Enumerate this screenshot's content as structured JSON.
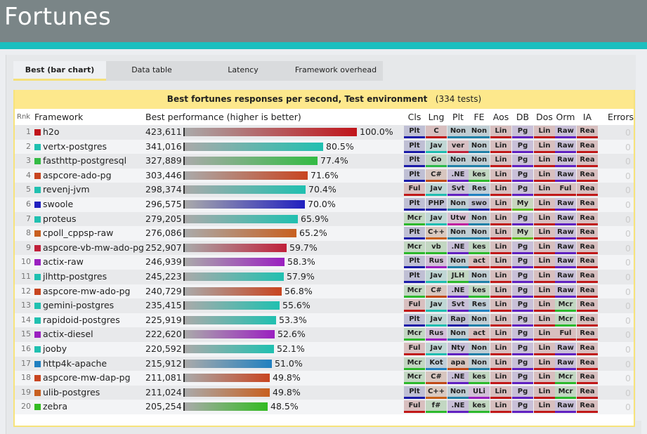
{
  "header": {
    "title": "Fortunes"
  },
  "tabs": [
    "Best (bar chart)",
    "Data table",
    "Latency",
    "Framework overhead"
  ],
  "section": {
    "title": "Best fortunes responses per second, Test environment",
    "count": "(334 tests)"
  },
  "columns": {
    "rank": "Rnk",
    "framework": "Framework",
    "perf": "Best performance (higher is better)",
    "tags": [
      "Cls",
      "Lng",
      "Plt",
      "FE",
      "Aos",
      "DB",
      "Dos",
      "Orm",
      "IA"
    ],
    "errors": "Errors"
  },
  "tag_colors": {
    "Plt": "#1a1aa8",
    "Ful": "#c01818",
    "Mcr": "#2cb82c",
    "C": "#c01818",
    "Jav": "#1fbcb0",
    "Go": "#2cb84a",
    "C#": "#c04a18",
    "PHP": "#2020a8",
    "C++": "#c86018",
    "vb": "#2cb82c",
    "Rus": "#9a20c0",
    "Kot": "#2080c0",
    "f#": "#2cb82c",
    "Non": "#2080a8",
    "ver": "#c0203a",
    "Svt": "#6020c0",
    ".NE": "#6020c0",
    "Utw": "#c020a0",
    "JLH": "#2cb82c",
    "Rap": "#2020a8",
    "Nty": "#6020c0",
    "apa": "#c04a18",
    "kes": "#2cb82c",
    "Res": "#2080c0",
    "swo": "#2020a8",
    "act": "#c01818",
    "ULi": "#9a20c0",
    "Lin": "#c01818",
    "Pg": "#6020c0",
    "My": "#60b820",
    "Raw": "#6020c0",
    "Rea": "#c01818"
  },
  "rows": [
    {
      "rank": "1",
      "name": "h2o",
      "value": "423,611",
      "pct": "100.0%",
      "frac": 1.0,
      "color": "#c0141a",
      "tags": [
        "Plt",
        "C",
        "Non",
        "Non",
        "Lin",
        "Pg",
        "Lin",
        "Raw",
        "Rea"
      ],
      "errors": "0"
    },
    {
      "rank": "2",
      "name": "vertx-postgres",
      "value": "341,016",
      "pct": "80.5%",
      "frac": 0.805,
      "color": "#20c0b0",
      "tags": [
        "Plt",
        "Jav",
        "ver",
        "Non",
        "Lin",
        "Pg",
        "Lin",
        "Raw",
        "Rea"
      ],
      "errors": "0"
    },
    {
      "rank": "3",
      "name": "fasthttp-postgresql",
      "value": "327,889",
      "pct": "77.4%",
      "frac": 0.774,
      "color": "#33bb44",
      "tags": [
        "Plt",
        "Go",
        "Non",
        "Non",
        "Lin",
        "Pg",
        "Lin",
        "Raw",
        "Rea"
      ],
      "errors": "0"
    },
    {
      "rank": "4",
      "name": "aspcore-ado-pg",
      "value": "303,446",
      "pct": "71.6%",
      "frac": 0.716,
      "color": "#c84520",
      "tags": [
        "Plt",
        "C#",
        ".NE",
        "kes",
        "Lin",
        "Pg",
        "Lin",
        "Raw",
        "Rea"
      ],
      "errors": "0"
    },
    {
      "rank": "5",
      "name": "revenj-jvm",
      "value": "298,374",
      "pct": "70.4%",
      "frac": 0.704,
      "color": "#20c0b0",
      "tags": [
        "Ful",
        "Jav",
        "Svt",
        "Res",
        "Lin",
        "Pg",
        "Lin",
        "Ful",
        "Rea"
      ],
      "errors": "0"
    },
    {
      "rank": "6",
      "name": "swoole",
      "value": "296,575",
      "pct": "70.0%",
      "frac": 0.7,
      "color": "#2020c0",
      "tags": [
        "Plt",
        "PHP",
        "Non",
        "swo",
        "Lin",
        "My",
        "Lin",
        "Raw",
        "Rea"
      ],
      "errors": "0"
    },
    {
      "rank": "7",
      "name": "proteus",
      "value": "279,205",
      "pct": "65.9%",
      "frac": 0.659,
      "color": "#20c0b0",
      "tags": [
        "Mcr",
        "Jav",
        "Utw",
        "Non",
        "Lin",
        "Pg",
        "Lin",
        "Raw",
        "Rea"
      ],
      "errors": "0"
    },
    {
      "rank": "8",
      "name": "cpoll_cppsp-raw",
      "value": "276,086",
      "pct": "65.2%",
      "frac": 0.652,
      "color": "#c86020",
      "tags": [
        "Plt",
        "C++",
        "Non",
        "Non",
        "Lin",
        "My",
        "Lin",
        "Raw",
        "Rea"
      ],
      "errors": "0"
    },
    {
      "rank": "9",
      "name": "aspcore-vb-mw-ado-pg",
      "value": "252,907",
      "pct": "59.7%",
      "frac": 0.597,
      "color": "#c0203a",
      "tags": [
        "Mcr",
        "vb",
        ".NE",
        "kes",
        "Lin",
        "Pg",
        "Lin",
        "Raw",
        "Rea"
      ],
      "errors": "0"
    },
    {
      "rank": "10",
      "name": "actix-raw",
      "value": "246,939",
      "pct": "58.3%",
      "frac": 0.583,
      "color": "#9a20c0",
      "tags": [
        "Plt",
        "Rus",
        "Non",
        "act",
        "Lin",
        "Pg",
        "Lin",
        "Raw",
        "Rea"
      ],
      "errors": "0"
    },
    {
      "rank": "11",
      "name": "jlhttp-postgres",
      "value": "245,223",
      "pct": "57.9%",
      "frac": 0.579,
      "color": "#20c0b0",
      "tags": [
        "Plt",
        "Jav",
        "JLH",
        "Non",
        "Lin",
        "Pg",
        "Lin",
        "Raw",
        "Rea"
      ],
      "errors": "0"
    },
    {
      "rank": "12",
      "name": "aspcore-mw-ado-pg",
      "value": "240,729",
      "pct": "56.8%",
      "frac": 0.568,
      "color": "#c84520",
      "tags": [
        "Mcr",
        "C#",
        ".NE",
        "kes",
        "Lin",
        "Pg",
        "Lin",
        "Raw",
        "Rea"
      ],
      "errors": "0"
    },
    {
      "rank": "13",
      "name": "gemini-postgres",
      "value": "235,415",
      "pct": "55.6%",
      "frac": 0.556,
      "color": "#20c0b0",
      "tags": [
        "Ful",
        "Jav",
        "Svt",
        "Res",
        "Lin",
        "Pg",
        "Lin",
        "Mcr",
        "Rea"
      ],
      "errors": "0"
    },
    {
      "rank": "14",
      "name": "rapidoid-postgres",
      "value": "225,919",
      "pct": "53.3%",
      "frac": 0.533,
      "color": "#20c0b0",
      "tags": [
        "Plt",
        "Jav",
        "Rap",
        "Non",
        "Lin",
        "Pg",
        "Lin",
        "Mcr",
        "Rea"
      ],
      "errors": "0"
    },
    {
      "rank": "15",
      "name": "actix-diesel",
      "value": "222,620",
      "pct": "52.6%",
      "frac": 0.526,
      "color": "#9a20c0",
      "tags": [
        "Mcr",
        "Rus",
        "Non",
        "act",
        "Lin",
        "Pg",
        "Lin",
        "Ful",
        "Rea"
      ],
      "errors": "0"
    },
    {
      "rank": "16",
      "name": "jooby",
      "value": "220,592",
      "pct": "52.1%",
      "frac": 0.521,
      "color": "#20c0b0",
      "tags": [
        "Ful",
        "Jav",
        "Nty",
        "Non",
        "Lin",
        "Pg",
        "Lin",
        "Raw",
        "Rea"
      ],
      "errors": "0"
    },
    {
      "rank": "17",
      "name": "http4k-apache",
      "value": "215,912",
      "pct": "51.0%",
      "frac": 0.51,
      "color": "#2080c0",
      "tags": [
        "Mcr",
        "Kot",
        "apa",
        "Non",
        "Lin",
        "Pg",
        "Lin",
        "Raw",
        "Rea"
      ],
      "errors": "0"
    },
    {
      "rank": "18",
      "name": "aspcore-mw-dap-pg",
      "value": "211,081",
      "pct": "49.8%",
      "frac": 0.498,
      "color": "#c84520",
      "tags": [
        "Mcr",
        "C#",
        ".NE",
        "kes",
        "Lin",
        "Pg",
        "Lin",
        "Mcr",
        "Rea"
      ],
      "errors": "0"
    },
    {
      "rank": "19",
      "name": "ulib-postgres",
      "value": "211,024",
      "pct": "49.8%",
      "frac": 0.498,
      "color": "#c86020",
      "tags": [
        "Plt",
        "C++",
        "Non",
        "ULi",
        "Lin",
        "Pg",
        "Lin",
        "Mcr",
        "Rea"
      ],
      "errors": "0"
    },
    {
      "rank": "20",
      "name": "zebra",
      "value": "205,254",
      "pct": "48.5%",
      "frac": 0.485,
      "color": "#33bb22",
      "tags": [
        "Ful",
        "f#",
        ".NE",
        "kes",
        "Lin",
        "Pg",
        "Lin",
        "Raw",
        "Rea"
      ],
      "errors": "0"
    }
  ]
}
